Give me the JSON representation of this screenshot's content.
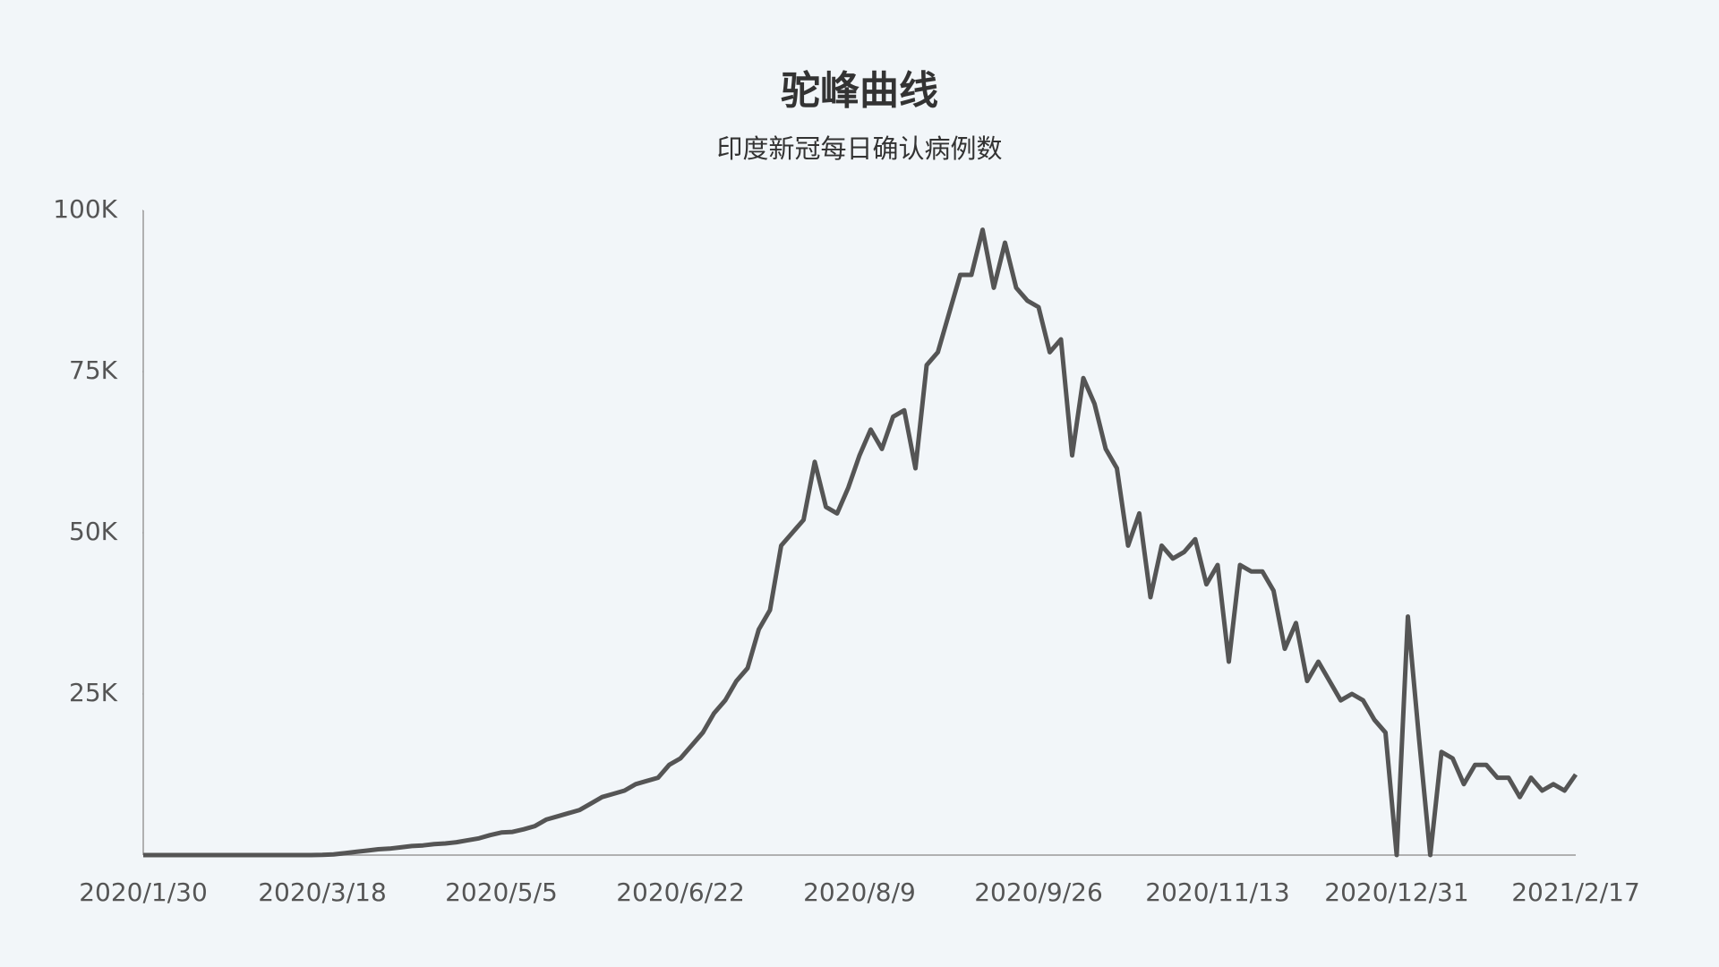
{
  "chart_data": {
    "type": "line",
    "title": "驼峰曲线",
    "subtitle": "印度新冠每日确认病例数",
    "categories": [
      "2020/1/30",
      null,
      null,
      null,
      null,
      null,
      null,
      null,
      null,
      null,
      null,
      null,
      null,
      null,
      null,
      null,
      "2020/3/18",
      null,
      null,
      null,
      null,
      null,
      null,
      null,
      null,
      null,
      null,
      null,
      null,
      null,
      null,
      null,
      "2020/5/5",
      null,
      null,
      null,
      null,
      null,
      null,
      null,
      null,
      null,
      null,
      null,
      null,
      null,
      null,
      null,
      "2020/6/22",
      null,
      null,
      null,
      null,
      null,
      null,
      null,
      null,
      null,
      null,
      null,
      null,
      null,
      null,
      null,
      "2020/8/9",
      null,
      null,
      null,
      null,
      null,
      null,
      null,
      null,
      null,
      null,
      null,
      null,
      null,
      null,
      null,
      "2020/9/26",
      null,
      null,
      null,
      null,
      null,
      null,
      null,
      null,
      null,
      null,
      null,
      null,
      null,
      null,
      null,
      "2020/11/13",
      null,
      null,
      null,
      null,
      null,
      null,
      null,
      null,
      null,
      null,
      null,
      null,
      null,
      null,
      null,
      "2020/12/31",
      null,
      null,
      null,
      null,
      null,
      null,
      null,
      null,
      null,
      null,
      null,
      null,
      null,
      null,
      null,
      "2021/2/17"
    ],
    "values": [
      0,
      0,
      0,
      0,
      0,
      0,
      0,
      0,
      0,
      0,
      0,
      0,
      0,
      0,
      0,
      3,
      28,
      100,
      300,
      500,
      700,
      900,
      1000,
      1200,
      1400,
      1500,
      1700,
      1800,
      2000,
      2300,
      2600,
      3100,
      3500,
      3600,
      4000,
      4500,
      5500,
      6000,
      6500,
      7000,
      8000,
      9000,
      9500,
      10000,
      11000,
      11500,
      12000,
      14000,
      15000,
      17000,
      19000,
      22000,
      24000,
      27000,
      29000,
      35000,
      38000,
      48000,
      50000,
      52000,
      61000,
      54000,
      53000,
      57000,
      62000,
      66000,
      63000,
      68000,
      69000,
      60000,
      76000,
      78000,
      84000,
      90000,
      90000,
      97000,
      88000,
      95000,
      88000,
      86000,
      85000,
      78000,
      80000,
      62000,
      74000,
      70000,
      63000,
      60000,
      48000,
      53000,
      40000,
      48000,
      46000,
      47000,
      49000,
      42000,
      45000,
      30000,
      45000,
      44000,
      44000,
      41000,
      32000,
      36000,
      27000,
      30000,
      27000,
      24000,
      25000,
      24000,
      21000,
      19000,
      0,
      37000,
      18000,
      0,
      16000,
      15000,
      11000,
      14000,
      14000,
      12000,
      12000,
      9000,
      12000,
      10000,
      11000,
      10000,
      12500
    ],
    "color": "#555555",
    "ylim": [
      0,
      100000
    ],
    "yticks": [
      {
        "value": 25000,
        "label": "25K"
      },
      {
        "value": 50000,
        "label": "50K"
      },
      {
        "value": 75000,
        "label": "75K"
      },
      {
        "value": 100000,
        "label": "100K"
      }
    ],
    "grid": false
  }
}
